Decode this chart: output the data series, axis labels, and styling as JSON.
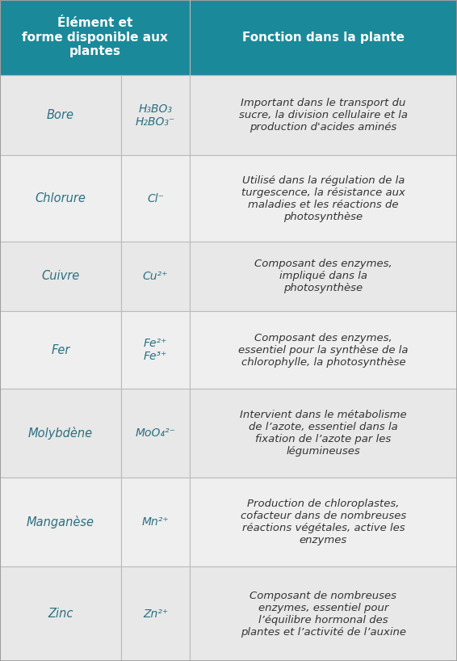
{
  "header_bg": "#1a8a9a",
  "header_text_color": "#ffffff",
  "row_bg_odd": "#e8e8e8",
  "row_bg_even": "#efefef",
  "cell_text_color": "#2a7080",
  "function_text_color": "#333333",
  "border_color": "#bbbbbb",
  "col1_header": "Élément et\nforme disponible aux\nplantes",
  "col2_header": "Fonction dans la plante",
  "rows": [
    {
      "element": "Bore",
      "formula": "H₃BO₃\nH₂BO₃⁻",
      "function": "Important dans le transport du\nsucre, la division cellulaire et la\nproduction d'acides aminés"
    },
    {
      "element": "Chlorure",
      "formula": "Cl⁻",
      "function": "Utilisé dans la régulation de la\nturgescence, la résistance aux\nmaladies et les réactions de\nphotosynthèse"
    },
    {
      "element": "Cuivre",
      "formula": "Cu²⁺",
      "function": "Composant des enzymes,\nimpliqué dans la\nphotosynthèse"
    },
    {
      "element": "Fer",
      "formula": "Fe²⁺\nFe³⁺",
      "function": "Composant des enzymes,\nessentiel pour la synthèse de la\nchlorophylle, la photosynthèse"
    },
    {
      "element": "Molybdène",
      "formula": "MoO₄²⁻",
      "function": "Intervient dans le métabolisme\nde l’azote, essentiel dans la\nfixation de l’azote par les\nlégumineuses"
    },
    {
      "element": "Manganèse",
      "formula": "Mn²⁺",
      "function": "Production de chloroplastes,\ncofacteur dans de nombreuses\nréactions végétales, active les\nenzymes"
    },
    {
      "element": "Zinc",
      "formula": "Zn²⁺",
      "function": "Composant de nombreuses\nenzymes, essentiel pour\nl’équilibre hormonal des\nplantes et l’activité de l’auxine"
    }
  ],
  "figwidth": 5.66,
  "figheight": 8.18,
  "dpi": 100
}
